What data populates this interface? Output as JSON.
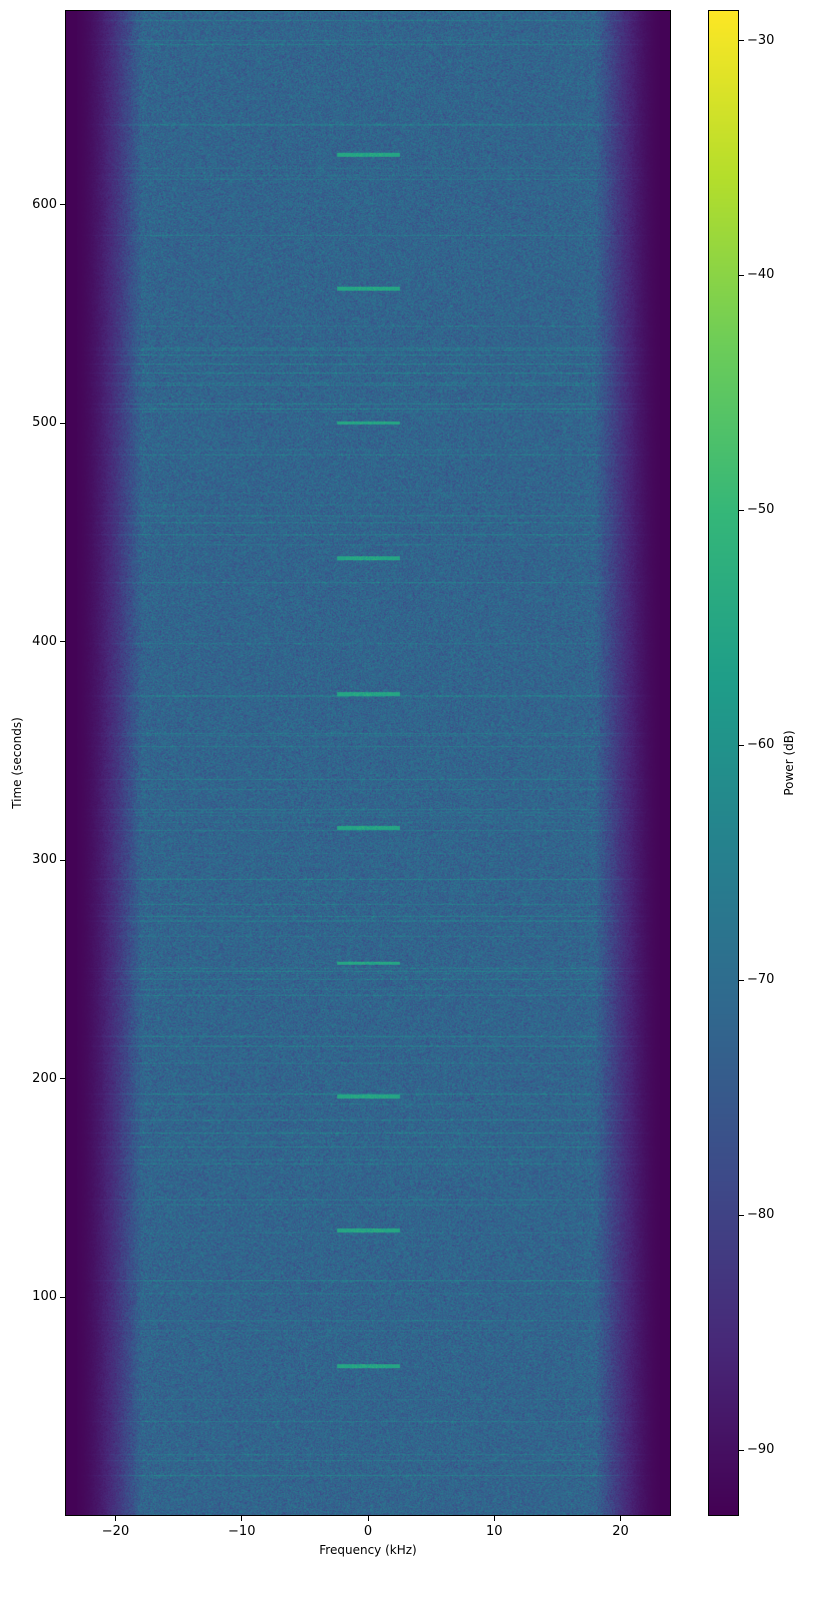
{
  "chart_data": {
    "type": "heatmap",
    "subtype": "spectrogram",
    "title": "",
    "xlabel": "Frequency (kHz)",
    "ylabel": "Time (seconds)",
    "xlim": [
      -24,
      24
    ],
    "ylim": [
      0,
      689
    ],
    "xticks": [
      -20,
      -10,
      0,
      10,
      20
    ],
    "xtick_labels": [
      "−20",
      "−10",
      "0",
      "10",
      "20"
    ],
    "yticks": [
      100,
      200,
      300,
      400,
      500,
      600
    ],
    "ytick_labels": [
      "100",
      "200",
      "300",
      "400",
      "500",
      "600"
    ],
    "colorbar": {
      "label": "Power (dB)",
      "colormap": "viridis",
      "range": [
        -92.8,
        -28.7
      ],
      "ticks": [
        -30,
        -40,
        -50,
        -60,
        -70,
        -80,
        -90
      ],
      "tick_labels": [
        "−30",
        "−40",
        "−50",
        "−60",
        "−70",
        "−80",
        "−90"
      ],
      "location": "right"
    },
    "background_level_db": -72,
    "passband_khz": [
      -20,
      20
    ],
    "stopband_level_db": -92,
    "bursts": {
      "center_khz": 0,
      "bandwidth_khz": 5,
      "level_db": -55,
      "times_s": [
        68.5,
        130.5,
        192,
        253,
        315,
        376.5,
        438.5,
        500.5,
        562,
        623.5
      ]
    },
    "grid": false
  }
}
